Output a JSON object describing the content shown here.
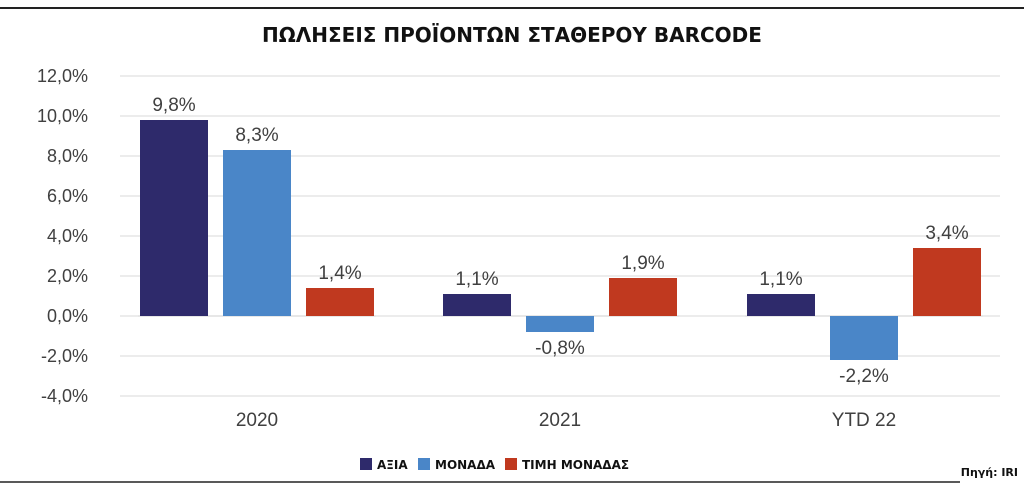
{
  "chart_data": {
    "type": "bar",
    "title": "ΠΩΛΗΣΕΙΣ ΠΡΟΪΟΝΤΩΝ ΣΤΑΘΕΡΟΥ BARCODE",
    "categories": [
      "2020",
      "2021",
      "YTD 22"
    ],
    "series": [
      {
        "name": "ΑΞΙΑ",
        "values": [
          9.8,
          1.1,
          1.1
        ],
        "labels": [
          "9,8%",
          "1,1%",
          "1,1%"
        ],
        "color": "#2e2a6b"
      },
      {
        "name": "ΜΟΝΑΔΑ",
        "values": [
          8.3,
          -0.8,
          -2.2
        ],
        "labels": [
          "8,3%",
          "-0,8%",
          "-2,2%"
        ],
        "color": "#4a86c8"
      },
      {
        "name": "ΤΙΜΗ ΜΟΝΑΔΑΣ",
        "values": [
          1.4,
          1.9,
          3.4
        ],
        "labels": [
          "1,4%",
          "1,9%",
          "3,4%"
        ],
        "color": "#c0391f"
      }
    ],
    "ylim": [
      -4,
      12
    ],
    "yticks": [
      12,
      10,
      8,
      6,
      4,
      2,
      0,
      -2,
      -4
    ],
    "ytick_labels": [
      "12,0%",
      "10,0%",
      "8,0%",
      "6,0%",
      "4,0%",
      "2,0%",
      "0,0%",
      "-2,0%",
      "-4,0%"
    ],
    "grid": true,
    "legend_position": "bottom",
    "xlabel": "",
    "ylabel": ""
  },
  "source": "Πηγή: IRI"
}
